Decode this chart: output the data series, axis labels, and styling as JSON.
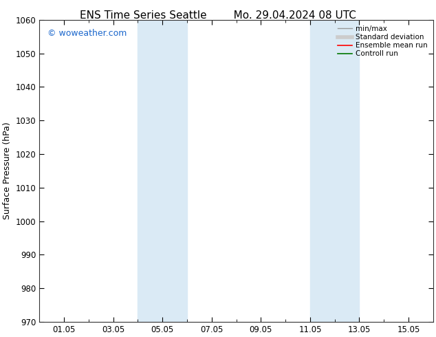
{
  "title_left": "ENS Time Series Seattle",
  "title_right": "Mo. 29.04.2024 08 UTC",
  "ylabel": "Surface Pressure (hPa)",
  "ylim": [
    970,
    1060
  ],
  "yticks": [
    970,
    980,
    990,
    1000,
    1010,
    1020,
    1030,
    1040,
    1050,
    1060
  ],
  "xlim": [
    0,
    16
  ],
  "xticks": [
    1,
    3,
    5,
    7,
    9,
    11,
    13,
    15
  ],
  "xticklabels": [
    "01.05",
    "03.05",
    "05.05",
    "07.05",
    "09.05",
    "11.05",
    "13.05",
    "15.05"
  ],
  "watermark": "© woweather.com",
  "watermark_color": "#1a66cc",
  "background_color": "#ffffff",
  "plot_background": "#ffffff",
  "shaded_bands": [
    {
      "xmin": 4.0,
      "xmax": 5.0,
      "color": "#daeaf5"
    },
    {
      "xmin": 5.0,
      "xmax": 6.0,
      "color": "#daeaf5"
    },
    {
      "xmin": 11.0,
      "xmax": 12.0,
      "color": "#daeaf5"
    },
    {
      "xmin": 12.0,
      "xmax": 13.0,
      "color": "#daeaf5"
    }
  ],
  "legend_entries": [
    {
      "label": "min/max",
      "color": "#999999",
      "linewidth": 1.0,
      "linestyle": "-"
    },
    {
      "label": "Standard deviation",
      "color": "#cccccc",
      "linewidth": 4,
      "linestyle": "-"
    },
    {
      "label": "Ensemble mean run",
      "color": "#ff0000",
      "linewidth": 1.2,
      "linestyle": "-"
    },
    {
      "label": "Controll run",
      "color": "#007700",
      "linewidth": 1.2,
      "linestyle": "-"
    }
  ],
  "title_fontsize": 11,
  "axis_fontsize": 9,
  "tick_fontsize": 8.5,
  "legend_fontsize": 7.5,
  "watermark_fontsize": 9
}
